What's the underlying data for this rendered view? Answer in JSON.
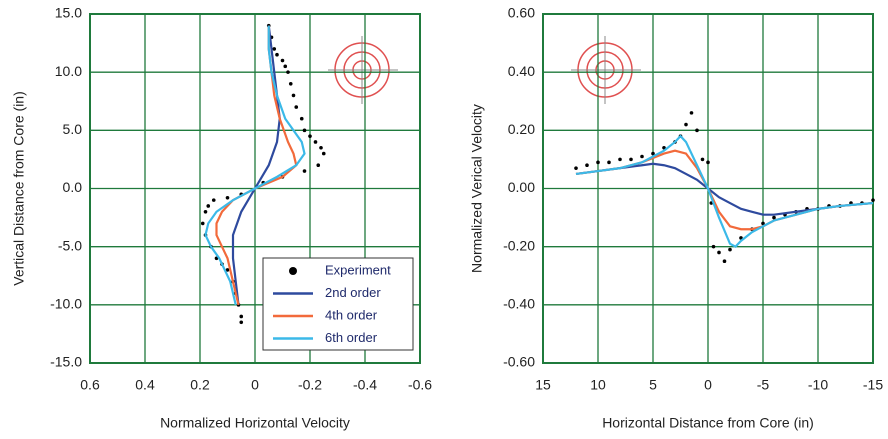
{
  "chart_data": [
    {
      "type": "line",
      "xlabel": "Normalized Horizontal Velocity",
      "ylabel": "Vertical Distance from Core (in)",
      "xlim": [
        0.6,
        -0.6
      ],
      "xticks": [
        0.6,
        0.4,
        0.2,
        0,
        -0.2,
        -0.4,
        -0.6
      ],
      "ylim": [
        -15,
        15
      ],
      "yticks": [
        {
          "value": 15,
          "label": "15.0"
        },
        {
          "value": 10,
          "label": "10.0"
        },
        {
          "value": 5,
          "label": "5.0"
        },
        {
          "value": 0,
          "label": "0.0"
        },
        {
          "value": -5,
          "label": "-5.0"
        },
        {
          "value": -10,
          "label": "-10.0"
        },
        {
          "value": -15,
          "label": "-15.0"
        }
      ],
      "grid": true,
      "legend": "lower right",
      "series": [
        {
          "name": "Experiment",
          "color": "#000000",
          "style": "markers",
          "x": [
            -0.05,
            -0.06,
            -0.07,
            -0.08,
            -0.1,
            -0.11,
            -0.12,
            -0.13,
            -0.14,
            -0.15,
            -0.17,
            -0.18,
            -0.2,
            -0.22,
            -0.24,
            -0.25,
            -0.23,
            -0.18,
            -0.1,
            -0.03,
            0.05,
            0.1,
            0.15,
            0.17,
            0.18,
            0.19,
            0.18,
            0.16,
            0.14,
            0.12,
            0.1,
            0.08,
            0.07,
            0.06,
            0.05,
            0.05
          ],
          "values": [
            14,
            13,
            12,
            11.5,
            11,
            10.5,
            10,
            9,
            8,
            7,
            6,
            5,
            4.5,
            4,
            3.5,
            3,
            2,
            1.5,
            1,
            0.5,
            -0.5,
            -0.8,
            -1,
            -1.5,
            -2,
            -3,
            -4,
            -5,
            -6,
            -6.5,
            -7,
            -8,
            -9,
            -10,
            -11,
            -11.5
          ]
        },
        {
          "name": "2nd order",
          "color": "#2e4a9e",
          "style": "line",
          "x": [
            -0.05,
            -0.06,
            -0.07,
            -0.08,
            -0.09,
            -0.08,
            -0.05,
            0,
            0.05,
            0.08,
            0.08,
            0.07,
            0.06
          ],
          "values": [
            14,
            12,
            10,
            8,
            6,
            4,
            2,
            0,
            -2,
            -4,
            -6,
            -8,
            -10
          ]
        },
        {
          "name": "4th order",
          "color": "#f26a3b",
          "style": "line",
          "x": [
            -0.05,
            -0.05,
            -0.06,
            -0.07,
            -0.09,
            -0.12,
            -0.14,
            -0.15,
            -0.1,
            0,
            0.08,
            0.12,
            0.14,
            0.14,
            0.12,
            0.1,
            0.08,
            0.06
          ],
          "values": [
            14,
            12,
            10,
            8,
            6,
            4,
            3,
            2,
            1,
            0,
            -1,
            -2,
            -3,
            -4,
            -5,
            -6,
            -8,
            -10
          ]
        },
        {
          "name": "6th order",
          "color": "#3bb9e8",
          "style": "line",
          "x": [
            -0.05,
            -0.05,
            -0.06,
            -0.08,
            -0.11,
            -0.14,
            -0.17,
            -0.18,
            -0.15,
            -0.08,
            0,
            0.08,
            0.14,
            0.17,
            0.18,
            0.16,
            0.13,
            0.09,
            0.07
          ],
          "values": [
            14,
            12,
            10,
            8,
            6,
            5,
            4,
            3,
            2,
            1,
            0,
            -1,
            -2,
            -3,
            -4,
            -5,
            -6,
            -8,
            -10
          ]
        }
      ]
    },
    {
      "type": "line",
      "xlabel": "Horizontal Distance from Core (in)",
      "ylabel": "Normalized Verical Velocity",
      "xlim": [
        15,
        -15
      ],
      "xticks": [
        15,
        10,
        5,
        0,
        -5,
        -10,
        -15
      ],
      "ylim": [
        -0.6,
        0.6
      ],
      "yticks": [
        {
          "value": 0.6,
          "label": "0.60"
        },
        {
          "value": 0.4,
          "label": "0.40"
        },
        {
          "value": 0.2,
          "label": "0.20"
        },
        {
          "value": 0,
          "label": "0.00"
        },
        {
          "value": -0.2,
          "label": "-0.20"
        },
        {
          "value": -0.4,
          "label": "-0.40"
        },
        {
          "value": -0.6,
          "label": "-0.60"
        }
      ],
      "grid": true,
      "series": [
        {
          "color": "#000000",
          "style": "markers",
          "x": [
            12,
            11,
            10,
            9,
            8,
            7,
            6,
            5,
            4,
            3,
            2.5,
            2,
            1.5,
            1,
            0.5,
            0,
            -0.3,
            -0.5,
            -1,
            -1.5,
            -2,
            -3,
            -4,
            -5,
            -6,
            -7,
            -8,
            -9,
            -10,
            -11,
            -12,
            -13,
            -14,
            -15
          ],
          "values": [
            0.07,
            0.08,
            0.09,
            0.09,
            0.1,
            0.1,
            0.11,
            0.12,
            0.14,
            0.16,
            0.18,
            0.22,
            0.26,
            0.2,
            0.1,
            0.09,
            -0.05,
            -0.2,
            -0.22,
            -0.25,
            -0.21,
            -0.17,
            -0.14,
            -0.12,
            -0.1,
            -0.09,
            -0.08,
            -0.07,
            -0.07,
            -0.06,
            -0.06,
            -0.05,
            -0.05,
            -0.04
          ]
        },
        {
          "color": "#2e4a9e",
          "style": "line",
          "x": [
            12,
            10,
            8,
            6,
            5,
            4,
            3,
            2,
            1,
            0,
            -1,
            -2,
            -3,
            -4,
            -5,
            -6,
            -8,
            -10,
            -12,
            -15
          ],
          "values": [
            0.05,
            0.06,
            0.07,
            0.08,
            0.085,
            0.08,
            0.07,
            0.05,
            0.03,
            0,
            -0.03,
            -0.05,
            -0.07,
            -0.08,
            -0.09,
            -0.09,
            -0.08,
            -0.07,
            -0.06,
            -0.05
          ]
        },
        {
          "color": "#f26a3b",
          "style": "line",
          "x": [
            12,
            10,
            8,
            6,
            4,
            3,
            2,
            1,
            0,
            -1,
            -2,
            -3,
            -4,
            -5,
            -6,
            -8,
            -10,
            -12,
            -15
          ],
          "values": [
            0.05,
            0.06,
            0.07,
            0.09,
            0.12,
            0.13,
            0.12,
            0.07,
            0,
            -0.08,
            -0.13,
            -0.14,
            -0.14,
            -0.13,
            -0.11,
            -0.09,
            -0.07,
            -0.06,
            -0.05
          ]
        },
        {
          "color": "#3bb9e8",
          "style": "line",
          "x": [
            12,
            10,
            8,
            6,
            4,
            3,
            2.5,
            2,
            1,
            0,
            -1,
            -2,
            -2.5,
            -3,
            -4,
            -5,
            -6,
            -8,
            -10,
            -12,
            -15
          ],
          "values": [
            0.05,
            0.06,
            0.07,
            0.09,
            0.13,
            0.16,
            0.18,
            0.16,
            0.08,
            0,
            -0.1,
            -0.19,
            -0.2,
            -0.18,
            -0.15,
            -0.13,
            -0.11,
            -0.09,
            -0.07,
            -0.06,
            -0.05
          ]
        }
      ]
    }
  ]
}
